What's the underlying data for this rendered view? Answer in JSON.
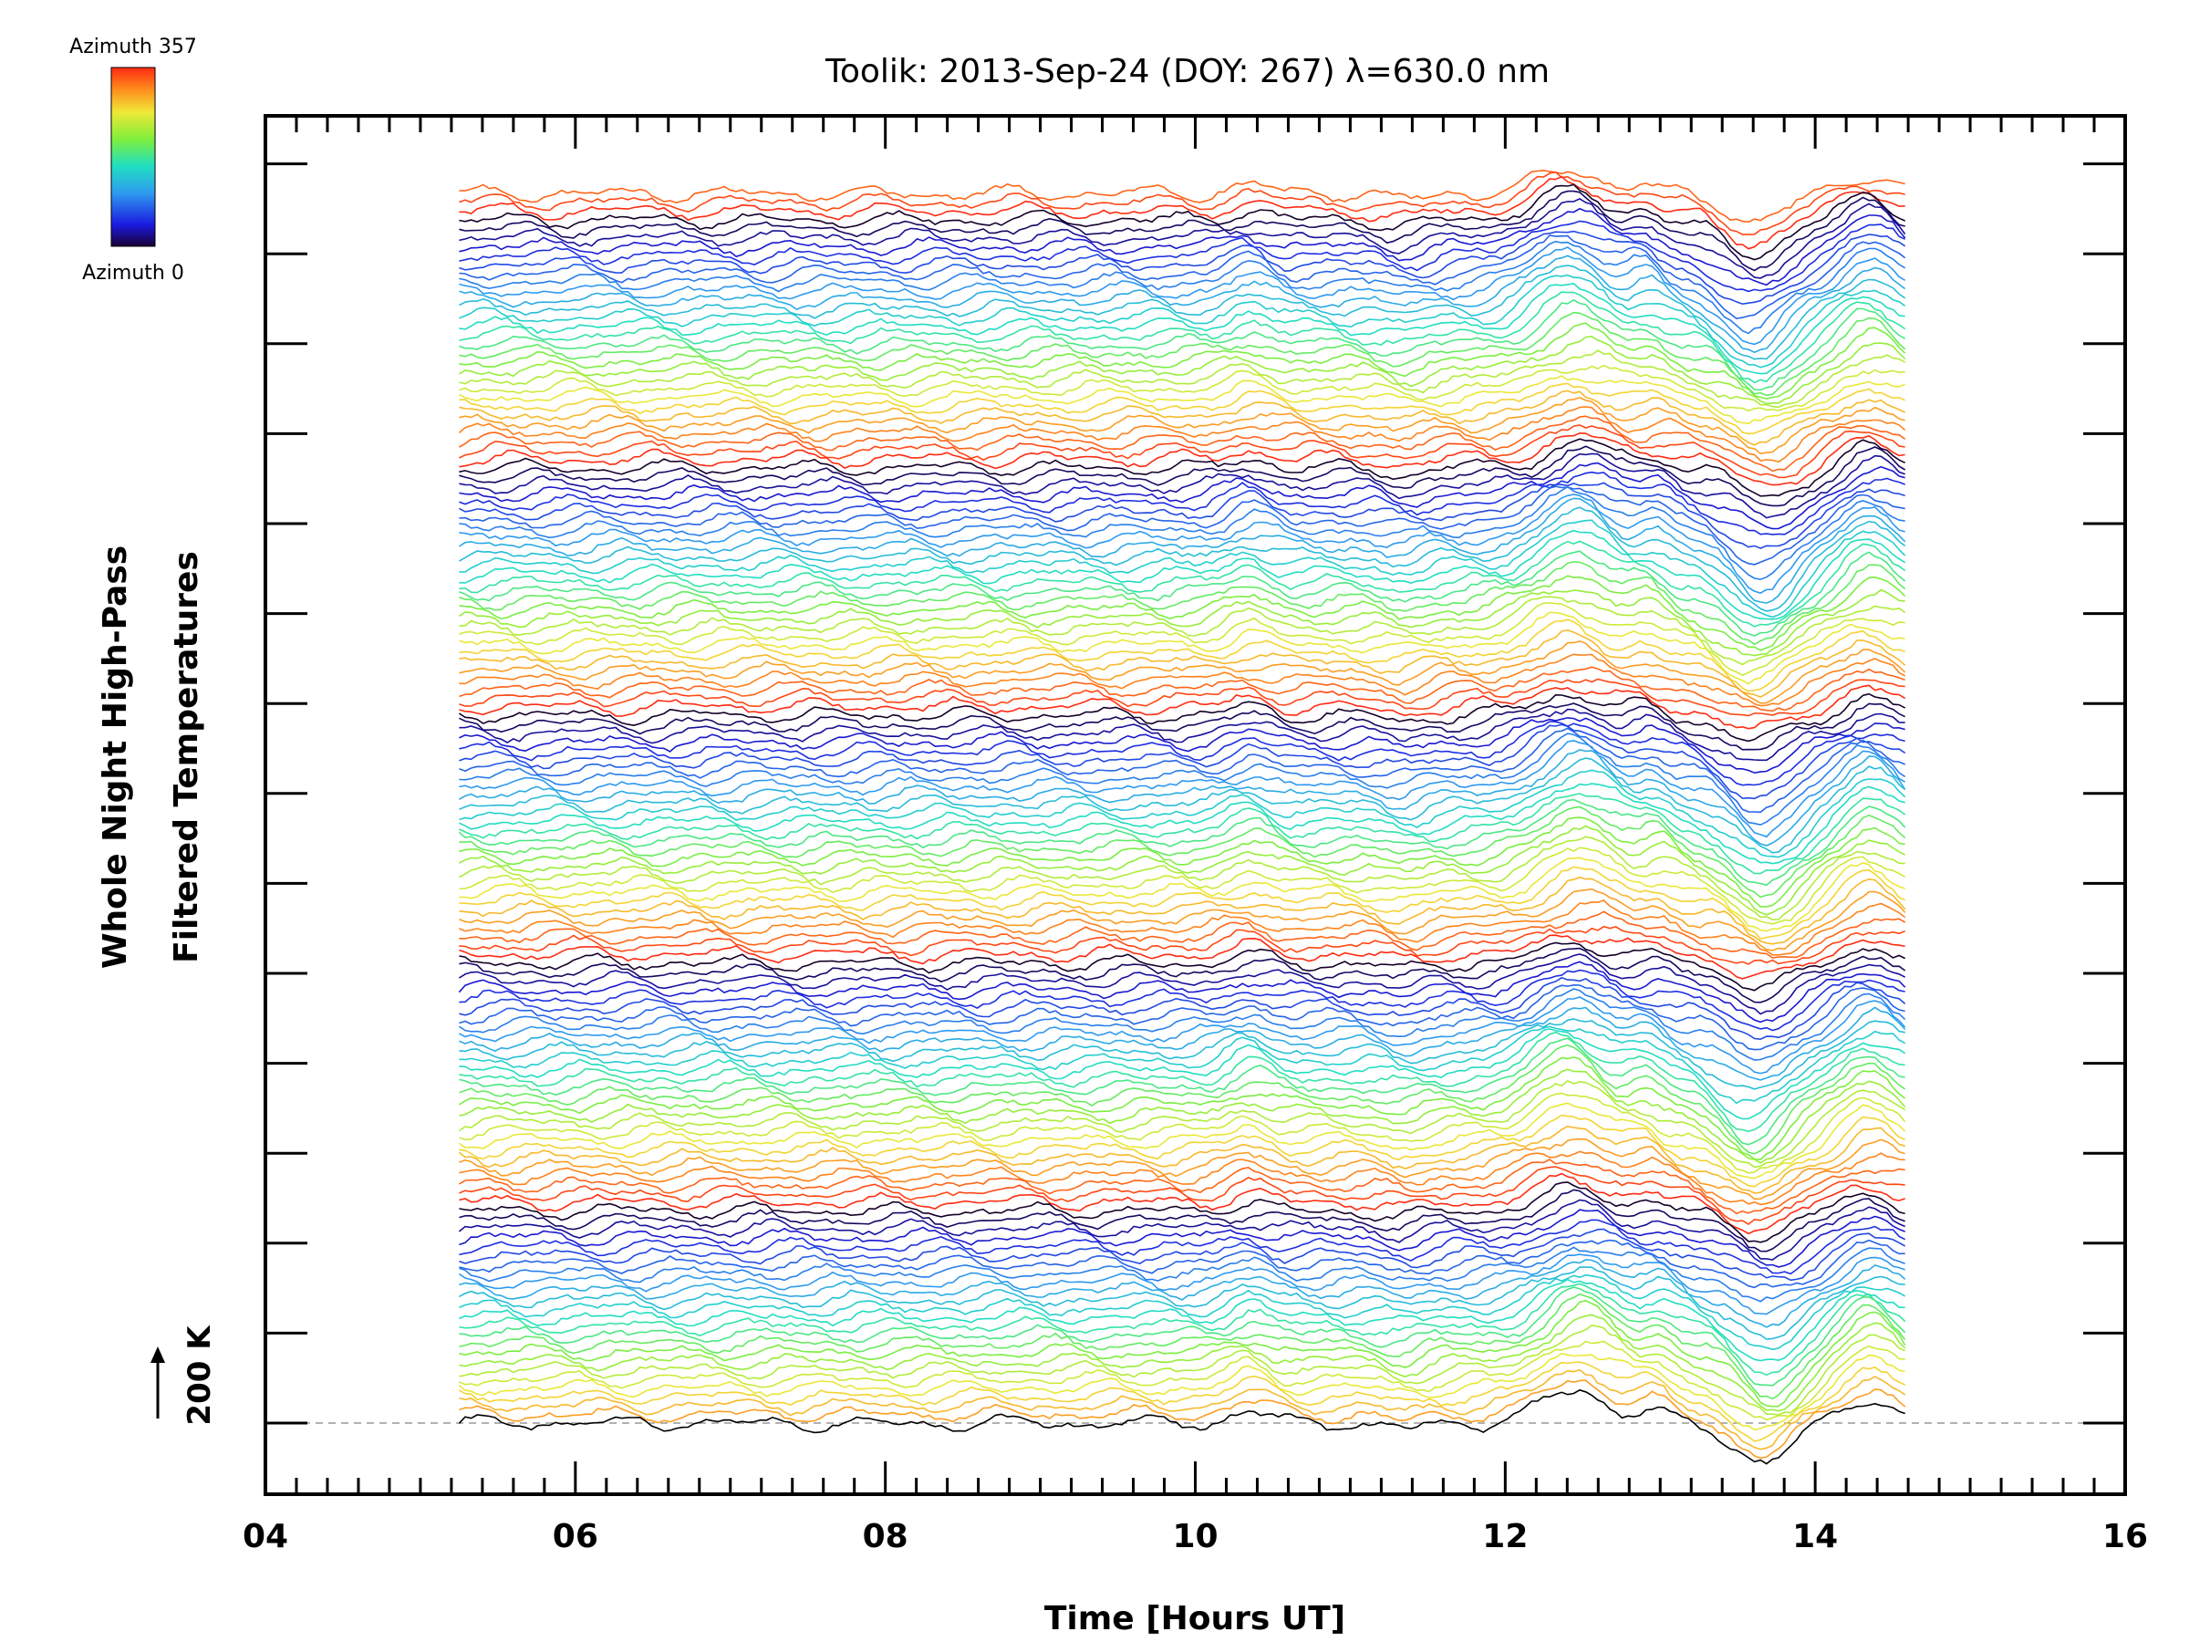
{
  "chart_data": {
    "type": "line",
    "title": "Toolik: 2013-Sep-24 (DOY: 267) λ=630.0 nm",
    "xlabel": "Time [Hours UT]",
    "ylabel_line1": "Whole Night High-Pass",
    "ylabel_line2": "Filtered Temperatures",
    "xlim": [
      4,
      16
    ],
    "x_ticks": [
      "04",
      "06",
      "08",
      "10",
      "12",
      "14",
      "16"
    ],
    "x_minor_step": 0.2,
    "y_major_tick_count": 15,
    "series_count": 140,
    "time_range": [
      5.25,
      14.58
    ],
    "scale_bar_label": "200 K",
    "baseline_dashed": true,
    "colorbar": {
      "top_label": "Azimuth 357",
      "bottom_label": "Azimuth 0",
      "colormap": "rainbow",
      "min": 0,
      "max": 357
    },
    "features": [
      {
        "time": 10.35,
        "note": "small warm bump"
      },
      {
        "time": 12.45,
        "note": "strong warm peak"
      },
      {
        "time": 13.65,
        "note": "strong cold trough"
      },
      {
        "time": 14.35,
        "note": "recovery peak"
      }
    ]
  }
}
